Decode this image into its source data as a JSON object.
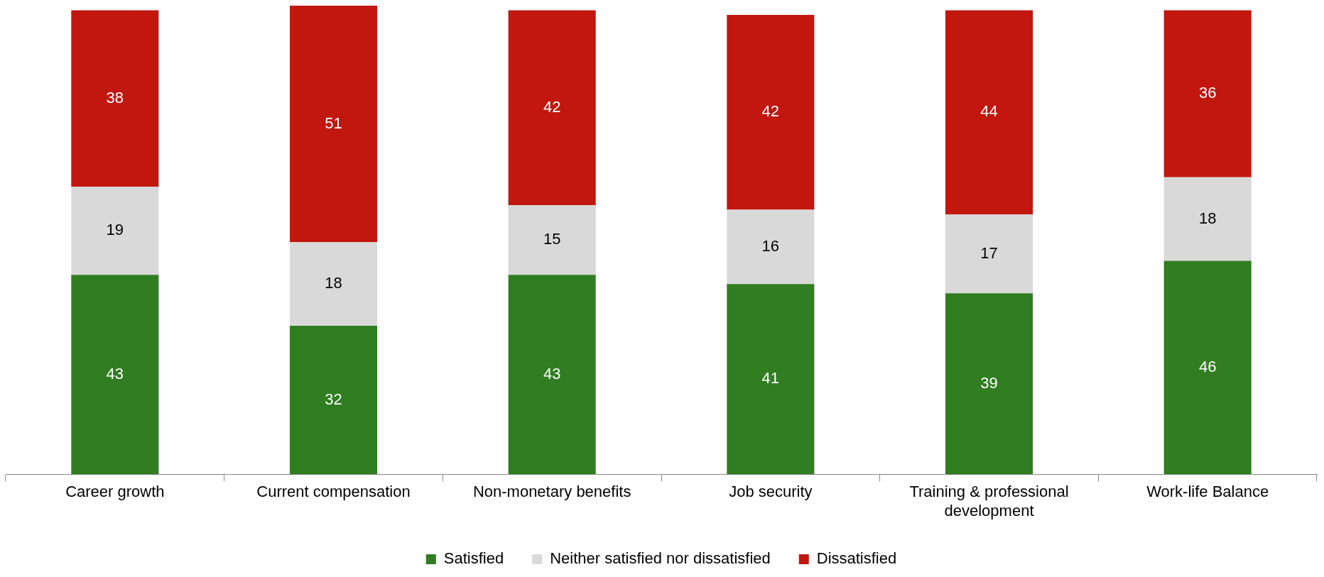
{
  "chart_data": {
    "type": "bar",
    "stacked": true,
    "data_labels": true,
    "legend": "bottom",
    "grid": false,
    "categories": [
      "Career growth",
      "Current compensation",
      "Non-monetary benefits",
      "Job security",
      "Training & professional development",
      "Work-life Balance"
    ],
    "series": [
      {
        "name": "Satisfied",
        "color": "#317d21",
        "values": [
          43,
          32,
          43,
          41,
          39,
          46
        ]
      },
      {
        "name": "Neither satisfied nor dissatisfied",
        "color": "#d9d9d9",
        "values": [
          19,
          18,
          15,
          16,
          17,
          18
        ]
      },
      {
        "name": "Dissatisfied",
        "color": "#c1170f",
        "values": [
          38,
          51,
          42,
          42,
          44,
          36
        ]
      }
    ]
  }
}
